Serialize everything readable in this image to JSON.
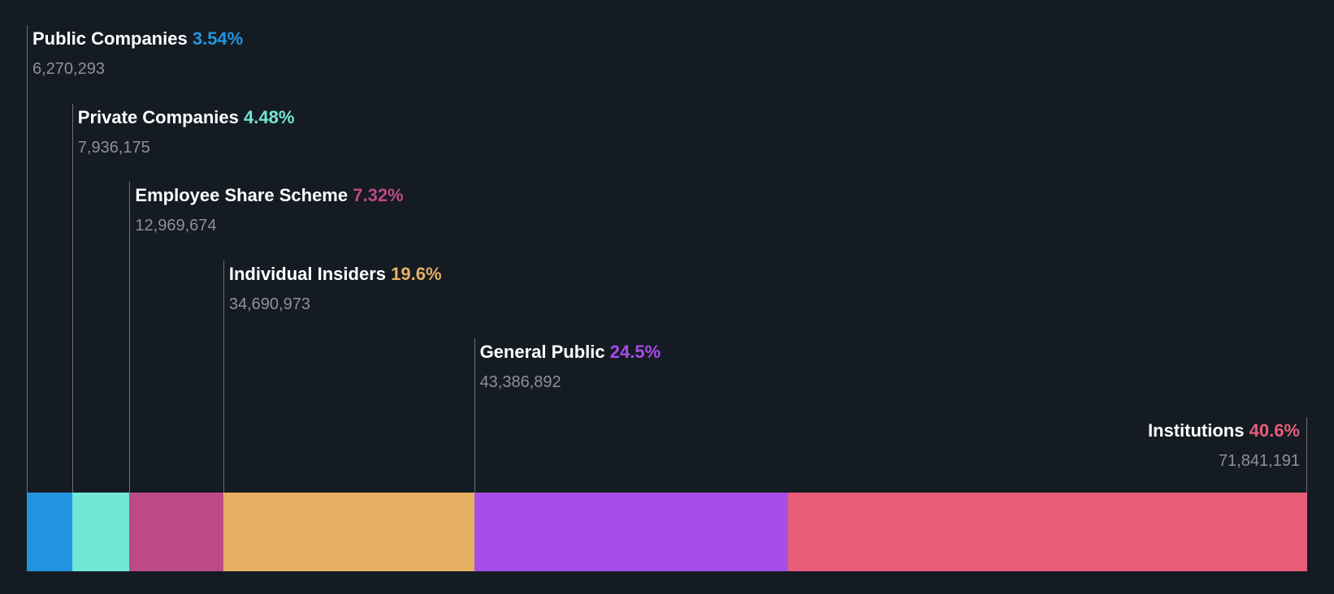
{
  "chart_data": {
    "type": "bar",
    "orientation": "horizontal-stacked",
    "title": "",
    "categories": [
      "Public Companies",
      "Private Companies",
      "Employee Share Scheme",
      "Individual Insiders",
      "General Public",
      "Institutions"
    ],
    "series": [
      {
        "name": "Public Companies",
        "percent_label": "3.54%",
        "shares_label": "6,270,293",
        "shares": 6270293,
        "percent": 3.54,
        "color": "#2394df"
      },
      {
        "name": "Private Companies",
        "percent_label": "4.48%",
        "shares_label": "7,936,175",
        "shares": 7936175,
        "percent": 4.48,
        "color": "#71e7d6"
      },
      {
        "name": "Employee Share Scheme",
        "percent_label": "7.32%",
        "shares_label": "12,969,674",
        "shares": 12969674,
        "percent": 7.32,
        "color": "#bb4a87"
      },
      {
        "name": "Individual Insiders",
        "percent_label": "19.6%",
        "shares_label": "34,690,973",
        "shares": 34690973,
        "percent": 19.6,
        "color": "#e5b064"
      },
      {
        "name": "General Public",
        "percent_label": "24.5%",
        "shares_label": "43,386,892",
        "shares": 43386892,
        "percent": 24.5,
        "color": "#a64ce9"
      },
      {
        "name": "Institutions",
        "percent_label": "40.6%",
        "shares_label": "71,841,191",
        "shares": 71841191,
        "percent": 40.6,
        "color": "#e85d78"
      }
    ]
  }
}
